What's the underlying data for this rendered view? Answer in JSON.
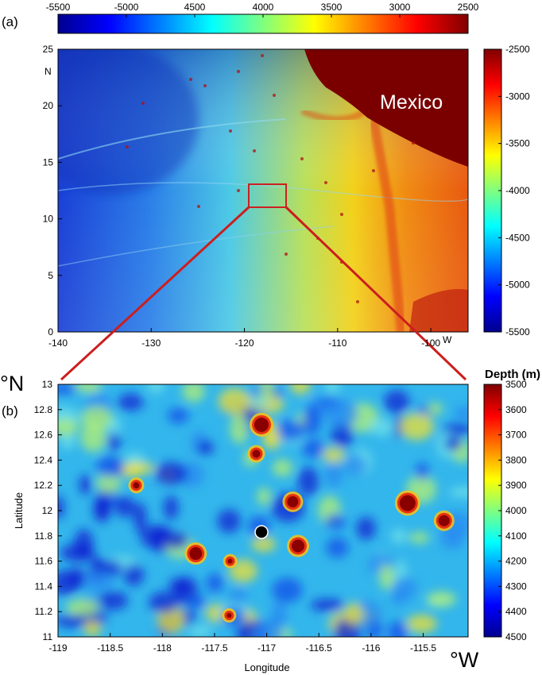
{
  "top_colorbar": {
    "ticks": [
      "-5500",
      "-5000",
      "4500",
      "4000",
      "3500",
      "3000",
      "2500"
    ]
  },
  "panel_a": {
    "label": "(a)",
    "region_label": "Mexico",
    "y_ticks": [
      "25",
      "20",
      "15",
      "10",
      "5",
      "0"
    ],
    "y_unit": "N",
    "x_ticks": [
      "-140",
      "-130",
      "-120",
      "-110",
      "-100"
    ],
    "x_unit": "W",
    "colorbar_ticks": [
      "-2500",
      "-3000",
      "-3500",
      "-4000",
      "-4500",
      "-5000",
      "-5500"
    ],
    "inset_box": {
      "lon": [
        -119,
        -115
      ],
      "lat": [
        11,
        13
      ]
    }
  },
  "panel_b": {
    "label": "(b)",
    "y_corner_unit": "°N",
    "x_corner_unit": "°W",
    "y_label": "Latitude",
    "x_label": "Longitude",
    "y_ticks": [
      "13",
      "12.8",
      "12.6",
      "12.4",
      "12.2",
      "12",
      "11.8",
      "11.6",
      "11.4",
      "11.2",
      "11"
    ],
    "x_ticks": [
      "-119",
      "-118.5",
      "-118",
      "-117.5",
      "-117",
      "-116.5",
      "-116",
      "-115.5"
    ],
    "colorbar_title": "Depth (m)",
    "colorbar_ticks": [
      "3500",
      "3600",
      "3700",
      "3800",
      "3900",
      "4000",
      "4100",
      "4200",
      "4300",
      "4400",
      "4500"
    ],
    "site_marker": {
      "lon": -117.05,
      "lat": 11.83
    }
  },
  "colors": {
    "inset_box": "#cc2020",
    "connector": "#cc1e1e",
    "site_marker": "#000000",
    "land": "#7a0000"
  }
}
